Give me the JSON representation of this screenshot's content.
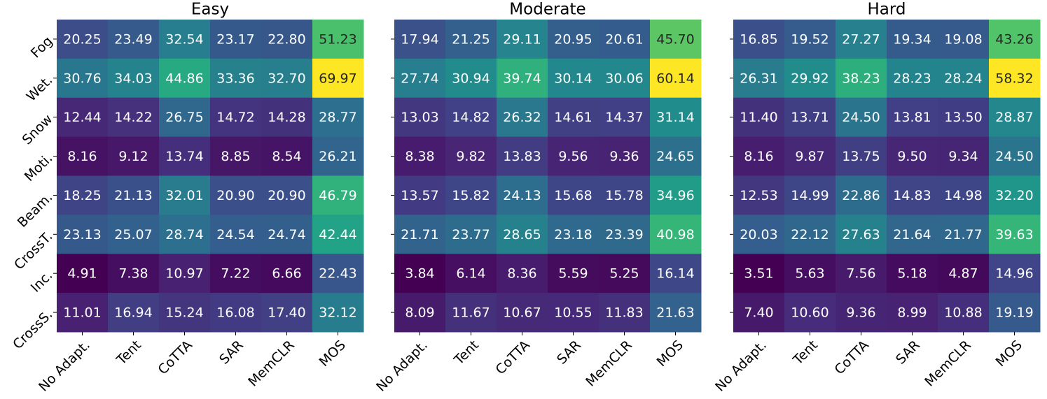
{
  "chart_data": [
    {
      "type": "heatmap",
      "title": "Easy",
      "colormap": "viridis",
      "x_categories": [
        "No Adapt.",
        "Tent",
        "CoTTA",
        "SAR",
        "MemCLR",
        "MOS"
      ],
      "y_categories": [
        "Fog",
        "Wet.",
        "Snow",
        "Moti.",
        "Beam.",
        "CrossT.",
        "Inc.",
        "CrossS."
      ],
      "values": [
        [
          20.25,
          23.49,
          32.54,
          23.17,
          22.8,
          51.23
        ],
        [
          30.76,
          34.03,
          44.86,
          33.36,
          32.7,
          69.97
        ],
        [
          12.44,
          14.22,
          26.75,
          14.72,
          14.28,
          28.77
        ],
        [
          8.16,
          9.12,
          13.74,
          8.85,
          8.54,
          26.21
        ],
        [
          18.25,
          21.13,
          32.01,
          20.9,
          20.9,
          46.79
        ],
        [
          23.13,
          25.07,
          28.74,
          24.54,
          24.74,
          42.44
        ],
        [
          4.91,
          7.38,
          10.97,
          7.22,
          6.66,
          22.43
        ],
        [
          11.01,
          16.94,
          15.24,
          16.08,
          17.4,
          32.12
        ]
      ],
      "value_labels": [
        [
          "20.25",
          "23.49",
          "32.54",
          "23.17",
          "22.80",
          "51.23"
        ],
        [
          "30.76",
          "34.03",
          "44.86",
          "33.36",
          "32.70",
          "69.97"
        ],
        [
          "12.44",
          "14.22",
          "26.75",
          "14.72",
          "14.28",
          "28.77"
        ],
        [
          "8.16",
          "9.12",
          "13.74",
          "8.85",
          "8.54",
          "26.21"
        ],
        [
          "18.25",
          "21.13",
          "32.01",
          "20.90",
          "20.90",
          "46.79"
        ],
        [
          "23.13",
          "25.07",
          "28.74",
          "24.54",
          "24.74",
          "42.44"
        ],
        [
          "4.91",
          "7.38",
          "10.97",
          "7.22",
          "6.66",
          "22.43"
        ],
        [
          "11.01",
          "16.94",
          "15.24",
          "16.08",
          "17.40",
          "32.12"
        ]
      ]
    },
    {
      "type": "heatmap",
      "title": "Moderate",
      "colormap": "viridis",
      "x_categories": [
        "No Adapt.",
        "Tent",
        "CoTTA",
        "SAR",
        "MemCLR",
        "MOS"
      ],
      "values": [
        [
          17.94,
          21.25,
          29.11,
          20.95,
          20.61,
          45.7
        ],
        [
          27.74,
          30.94,
          39.74,
          30.14,
          30.06,
          60.14
        ],
        [
          13.03,
          14.82,
          26.32,
          14.61,
          14.37,
          31.14
        ],
        [
          8.38,
          9.82,
          13.83,
          9.56,
          9.36,
          24.65
        ],
        [
          13.57,
          15.82,
          24.13,
          15.68,
          15.78,
          34.96
        ],
        [
          21.71,
          23.77,
          28.65,
          23.18,
          23.39,
          40.98
        ],
        [
          3.84,
          6.14,
          8.36,
          5.59,
          5.25,
          16.14
        ],
        [
          8.09,
          11.67,
          10.67,
          10.55,
          11.83,
          21.63
        ]
      ],
      "value_labels": [
        [
          "17.94",
          "21.25",
          "29.11",
          "20.95",
          "20.61",
          "45.70"
        ],
        [
          "27.74",
          "30.94",
          "39.74",
          "30.14",
          "30.06",
          "60.14"
        ],
        [
          "13.03",
          "14.82",
          "26.32",
          "14.61",
          "14.37",
          "31.14"
        ],
        [
          "8.38",
          "9.82",
          "13.83",
          "9.56",
          "9.36",
          "24.65"
        ],
        [
          "13.57",
          "15.82",
          "24.13",
          "15.68",
          "15.78",
          "34.96"
        ],
        [
          "21.71",
          "23.77",
          "28.65",
          "23.18",
          "23.39",
          "40.98"
        ],
        [
          "3.84",
          "6.14",
          "8.36",
          "5.59",
          "5.25",
          "16.14"
        ],
        [
          "8.09",
          "11.67",
          "10.67",
          "10.55",
          "11.83",
          "21.63"
        ]
      ]
    },
    {
      "type": "heatmap",
      "title": "Hard",
      "colormap": "viridis",
      "x_categories": [
        "No Adapt.",
        "Tent",
        "CoTTA",
        "SAR",
        "MemCLR",
        "MOS"
      ],
      "values": [
        [
          16.85,
          19.52,
          27.27,
          19.34,
          19.08,
          43.26
        ],
        [
          26.31,
          29.92,
          38.23,
          28.23,
          28.24,
          58.32
        ],
        [
          11.4,
          13.71,
          24.5,
          13.81,
          13.5,
          28.87
        ],
        [
          8.16,
          9.87,
          13.75,
          9.5,
          9.34,
          24.5
        ],
        [
          12.53,
          14.99,
          22.86,
          14.83,
          14.98,
          32.2
        ],
        [
          20.03,
          22.12,
          27.63,
          21.64,
          21.77,
          39.63
        ],
        [
          3.51,
          5.63,
          7.56,
          5.18,
          4.87,
          14.96
        ],
        [
          7.4,
          10.6,
          9.36,
          8.99,
          10.88,
          19.19
        ]
      ],
      "value_labels": [
        [
          "16.85",
          "19.52",
          "27.27",
          "19.34",
          "19.08",
          "43.26"
        ],
        [
          "26.31",
          "29.92",
          "38.23",
          "28.23",
          "28.24",
          "58.32"
        ],
        [
          "11.40",
          "13.71",
          "24.50",
          "13.81",
          "13.50",
          "28.87"
        ],
        [
          "8.16",
          "9.87",
          "13.75",
          "9.50",
          "9.34",
          "24.50"
        ],
        [
          "12.53",
          "14.99",
          "22.86",
          "14.83",
          "14.98",
          "32.20"
        ],
        [
          "20.03",
          "22.12",
          "27.63",
          "21.64",
          "21.77",
          "39.63"
        ],
        [
          "3.51",
          "5.63",
          "7.56",
          "5.18",
          "4.87",
          "14.96"
        ],
        [
          "7.40",
          "10.60",
          "9.36",
          "8.99",
          "10.88",
          "19.19"
        ]
      ]
    }
  ]
}
